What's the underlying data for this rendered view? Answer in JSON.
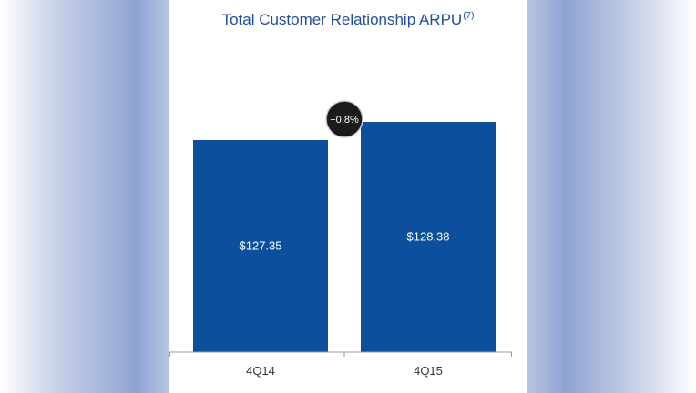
{
  "chart_data": {
    "type": "bar",
    "title": "Total Customer Relationship ARPU",
    "title_footnote": "(7)",
    "categories": [
      "4Q14",
      "4Q15"
    ],
    "values": [
      127.35,
      128.38
    ],
    "data_labels": [
      "$127.35",
      "$128.38"
    ],
    "annotation": "+0.8%",
    "bar_color": "#0c4f9c",
    "grid": false,
    "legend": "none"
  }
}
